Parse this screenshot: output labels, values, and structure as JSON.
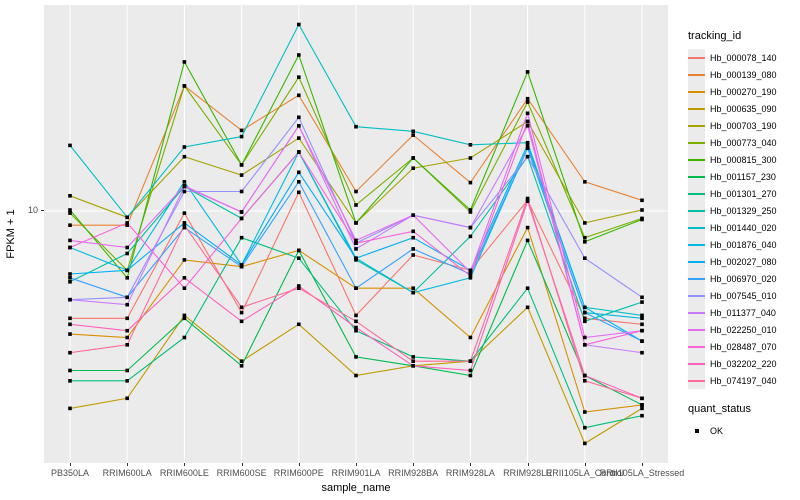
{
  "figure": {
    "y_axis_title": "FPKM + 1",
    "x_axis_title": "sample_name",
    "y_tick_label": "10"
  },
  "legend": {
    "tracking_title": "tracking_id",
    "quant_title": "quant_status",
    "quant_items": [
      {
        "label": "OK",
        "marker": "black-square",
        "color": "#000000"
      }
    ]
  },
  "chart_data": {
    "type": "line",
    "title": "",
    "xlabel": "sample_name",
    "ylabel": "FPKM + 1",
    "y_scale": "log10",
    "ylim": [
      0.85,
      75
    ],
    "y_ticks": [
      10
    ],
    "grid": "major-white-on-gray",
    "panel_bg": "#EBEBEB",
    "grid_color": "#FFFFFF",
    "point_marker": "black-square",
    "legend_position": "right",
    "categories": [
      "PB350LA",
      "RRIM600LA",
      "RRIM600LE",
      "RRIM600SE",
      "RRIM600PE",
      "RRIM901LA",
      "RRIM928BA",
      "RRIM928LA",
      "RRIM928LE",
      "RRII105LA_Control",
      "RRII105LA_Stressed"
    ],
    "series": [
      {
        "name": "Hb_000078_140",
        "color": "#F8766D",
        "values": [
          3.5,
          3.5,
          9.8,
          3.7,
          12.0,
          3.6,
          6.5,
          5.6,
          11.1,
          3.5,
          3.3
        ]
      },
      {
        "name": "Hb_000139_080",
        "color": "#EA8331",
        "values": [
          8.7,
          8.7,
          34.0,
          22.0,
          31.0,
          12.1,
          21.0,
          13.2,
          30.0,
          13.3,
          11.1
        ]
      },
      {
        "name": "Hb_000270_190",
        "color": "#D89000",
        "values": [
          3.0,
          2.9,
          6.2,
          5.8,
          6.8,
          4.7,
          4.7,
          2.9,
          8.5,
          1.4,
          1.5
        ]
      },
      {
        "name": "Hb_000635_090",
        "color": "#C09B00",
        "values": [
          1.45,
          1.6,
          3.6,
          2.3,
          3.3,
          2.0,
          2.2,
          2.3,
          3.9,
          1.03,
          1.45
        ]
      },
      {
        "name": "Hb_000703_190",
        "color": "#A3A500",
        "values": [
          11.6,
          9.4,
          17.0,
          14.2,
          20.4,
          8.9,
          15.2,
          16.8,
          24.0,
          8.9,
          10.1
        ]
      },
      {
        "name": "Hb_000773_040",
        "color": "#7CAE00",
        "values": [
          9.8,
          5.6,
          34.0,
          15.7,
          37.0,
          10.6,
          16.8,
          9.9,
          29.0,
          7.7,
          9.3
        ]
      },
      {
        "name": "Hb_000815_300",
        "color": "#39B600",
        "values": [
          10.1,
          5.2,
          43.0,
          15.7,
          46.0,
          8.9,
          16.8,
          10.1,
          39.0,
          7.4,
          9.2
        ]
      },
      {
        "name": "Hb_001157_230",
        "color": "#00BB4E",
        "values": [
          2.1,
          2.1,
          3.5,
          2.2,
          6.8,
          2.4,
          2.2,
          2.0,
          7.5,
          2.0,
          1.5
        ]
      },
      {
        "name": "Hb_001301_270",
        "color": "#00BF7D",
        "values": [
          1.9,
          1.9,
          2.9,
          7.7,
          6.3,
          3.1,
          2.4,
          2.3,
          4.7,
          1.2,
          1.35
        ]
      },
      {
        "name": "Hb_001329_250",
        "color": "#00C1A3",
        "values": [
          5.0,
          6.6,
          12.7,
          9.3,
          17.8,
          6.2,
          4.5,
          7.8,
          17.0,
          3.4,
          4.1
        ]
      },
      {
        "name": "Hb_001440_020",
        "color": "#00BFC4",
        "values": [
          19.0,
          9.4,
          18.7,
          20.7,
          62.0,
          22.8,
          21.8,
          19.1,
          19.5,
          3.9,
          3.6
        ]
      },
      {
        "name": "Hb_001876_040",
        "color": "#00BAE0",
        "values": [
          7.0,
          5.6,
          13.3,
          5.9,
          17.8,
          6.3,
          4.5,
          5.2,
          18.5,
          3.7,
          3.5
        ]
      },
      {
        "name": "Hb_002027_080",
        "color": "#00B0F6",
        "values": [
          5.4,
          5.6,
          8.9,
          5.9,
          14.6,
          6.3,
          7.7,
          5.6,
          19.1,
          3.9,
          2.8
        ]
      },
      {
        "name": "Hb_006970_020",
        "color": "#35A2FF",
        "values": [
          5.2,
          4.3,
          8.5,
          5.8,
          13.3,
          4.7,
          6.9,
          5.4,
          18.5,
          3.7,
          2.8
        ]
      },
      {
        "name": "Hb_007545_010",
        "color": "#9590FF",
        "values": [
          4.2,
          4.3,
          12.1,
          12.1,
          25.0,
          7.3,
          9.6,
          8.5,
          17.0,
          6.3,
          4.3
        ]
      },
      {
        "name": "Hb_011377_040",
        "color": "#C77CFF",
        "values": [
          4.2,
          4.0,
          12.7,
          9.9,
          23.0,
          6.9,
          9.6,
          8.5,
          23.0,
          2.7,
          2.5
        ]
      },
      {
        "name": "Hb_022250_010",
        "color": "#E76BF3",
        "values": [
          7.5,
          7.0,
          12.8,
          9.9,
          23.0,
          7.5,
          9.6,
          5.5,
          26.0,
          2.9,
          3.1
        ]
      },
      {
        "name": "Hb_028487_070",
        "color": "#FA62DB",
        "values": [
          7.0,
          8.9,
          4.7,
          9.3,
          17.8,
          7.3,
          8.2,
          5.3,
          24.0,
          2.7,
          3.1
        ]
      },
      {
        "name": "Hb_032202_220",
        "color": "#FF62BC",
        "values": [
          3.3,
          3.1,
          5.2,
          3.4,
          4.8,
          3.2,
          2.2,
          2.1,
          11.0,
          2.0,
          1.6
        ]
      },
      {
        "name": "Hb_074197_040",
        "color": "#FF6A98",
        "values": [
          2.5,
          2.7,
          8.7,
          3.9,
          4.7,
          3.4,
          2.3,
          2.3,
          11.3,
          1.9,
          1.6
        ]
      }
    ]
  }
}
